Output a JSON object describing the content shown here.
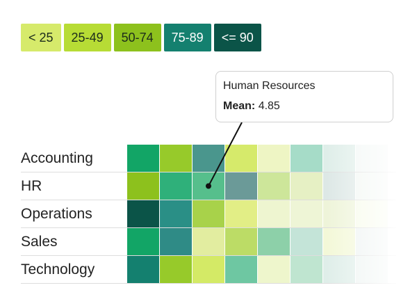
{
  "legend": [
    {
      "label": "< 25",
      "color": "#d6ea6b"
    },
    {
      "label": "25-49",
      "color": "#b7dc35"
    },
    {
      "label": "50-74",
      "color": "#8dc11d"
    },
    {
      "label": "75-89",
      "color": "#14806f"
    },
    {
      "label": "<= 90",
      "color": "#0b5448"
    }
  ],
  "tooltip": {
    "title": "Human Resources",
    "metric_label": "Mean:",
    "metric_value": "4.85"
  },
  "chart_data": {
    "type": "heatmap",
    "rows": [
      "Accounting",
      "HR",
      "Operations",
      "Sales",
      "Technology"
    ],
    "columns": 8,
    "cell_colors": [
      [
        "#12a566",
        "#97ca2a",
        "#4a968d",
        "#d6ea6b",
        "#eef5c4",
        "#a6dcc8",
        "#dfeee9",
        "#f2f7f5"
      ],
      [
        "#8dc11d",
        "#2fb07a",
        "#56bf8c",
        "#6b9a98",
        "#cde69a",
        "#e6f0c4",
        "#dde8e6",
        "#f2f7f3"
      ],
      [
        "#0b5448",
        "#2a8f86",
        "#a8d24a",
        "#e2ee86",
        "#eef5d0",
        "#eef5d6",
        "#eef4d9",
        "#f7fbea"
      ],
      [
        "#12a566",
        "#2f8b86",
        "#e2eda0",
        "#bcdc66",
        "#8dd0a9",
        "#c4e4d8",
        "#f3f8d8",
        "#eef3f2"
      ],
      [
        "#14806f",
        "#97ca2a",
        "#d4ea66",
        "#6ec7a2",
        "#eef6cc",
        "#bfe5d0",
        "#dfeee9",
        "#eef4f2"
      ]
    ],
    "highlight": {
      "row": 1,
      "col": 2
    }
  }
}
